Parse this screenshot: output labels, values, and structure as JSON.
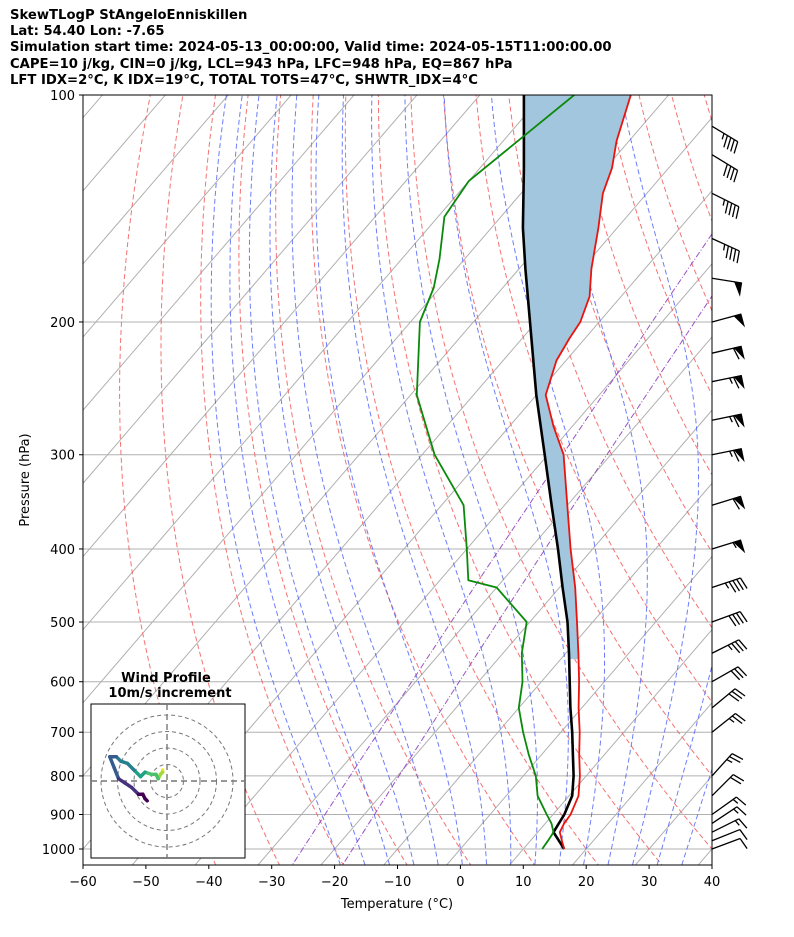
{
  "header": {
    "line1": "SkewTLogP StAngeloEnniskillen",
    "line2": "Lat: 54.40   Lon: -7.65",
    "line3": "Simulation start time: 2024-05-13_00:00:00, Valid time: 2024-05-15T11:00:00.00",
    "line4": "CAPE=10 j/kg, CIN=0 j/kg, LCL=943 hPa, LFC=948 hPa, EQ=867 hPa",
    "line5": "LFT IDX=2°C, K IDX=19°C, TOTAL TOTS=47°C, SHWTR_IDX=4°C"
  },
  "chart_data": {
    "type": "skewt-logp",
    "xlabel": "Temperature (°C)",
    "ylabel": "Pressure (hPa)",
    "xlim": [
      -60,
      40
    ],
    "ylim": [
      1050,
      100
    ],
    "x_ticks": [
      "−60",
      "−50",
      "−40",
      "−30",
      "−20",
      "−10",
      "0",
      "10",
      "20",
      "30",
      "40"
    ],
    "y_ticks": [
      "100",
      "200",
      "300",
      "400",
      "500",
      "600",
      "700",
      "800",
      "900",
      "1000"
    ],
    "colors": {
      "temperature": "#e8140e",
      "dewpoint": "#0a8a0a",
      "parcel": "#000000",
      "cape_fill": "#a3c6df",
      "dry_adiabat": "#f25a5a",
      "moist_adiabat": "#4a5ef5",
      "mixing_ratio": "#8e3fbf",
      "isotherm": "#b0b0b0"
    },
    "temperature_profile": [
      {
        "p": 1000,
        "t": 16.5
      },
      {
        "p": 975,
        "t": 15.0
      },
      {
        "p": 950,
        "t": 13.5
      },
      {
        "p": 925,
        "t": 13.0
      },
      {
        "p": 900,
        "t": 12.8
      },
      {
        "p": 850,
        "t": 11.5
      },
      {
        "p": 800,
        "t": 9.0
      },
      {
        "p": 750,
        "t": 6.0
      },
      {
        "p": 700,
        "t": 3.0
      },
      {
        "p": 650,
        "t": -0.5
      },
      {
        "p": 600,
        "t": -4.0
      },
      {
        "p": 550,
        "t": -8.0
      },
      {
        "p": 500,
        "t": -12.5
      },
      {
        "p": 450,
        "t": -17.5
      },
      {
        "p": 400,
        "t": -23.5
      },
      {
        "p": 350,
        "t": -30.0
      },
      {
        "p": 300,
        "t": -37.5
      },
      {
        "p": 275,
        "t": -43.0
      },
      {
        "p": 250,
        "t": -48.5
      },
      {
        "p": 225,
        "t": -51.5
      },
      {
        "p": 210,
        "t": -52.5
      },
      {
        "p": 200,
        "t": -53.0
      },
      {
        "p": 185,
        "t": -55.0
      },
      {
        "p": 170,
        "t": -58.5
      },
      {
        "p": 150,
        "t": -63.0
      },
      {
        "p": 135,
        "t": -67.0
      },
      {
        "p": 125,
        "t": -69.0
      },
      {
        "p": 115,
        "t": -72.0
      },
      {
        "p": 100,
        "t": -76.0
      }
    ],
    "dewpoint_profile": [
      {
        "p": 1000,
        "t": 13.0
      },
      {
        "p": 975,
        "t": 12.8
      },
      {
        "p": 950,
        "t": 12.5
      },
      {
        "p": 925,
        "t": 11.0
      },
      {
        "p": 900,
        "t": 9.0
      },
      {
        "p": 850,
        "t": 5.0
      },
      {
        "p": 800,
        "t": 2.0
      },
      {
        "p": 750,
        "t": -2.0
      },
      {
        "p": 700,
        "t": -6.0
      },
      {
        "p": 650,
        "t": -10.0
      },
      {
        "p": 600,
        "t": -13.0
      },
      {
        "p": 550,
        "t": -17.0
      },
      {
        "p": 500,
        "t": -20.5
      },
      {
        "p": 450,
        "t": -30.0
      },
      {
        "p": 440,
        "t": -35.5
      },
      {
        "p": 400,
        "t": -40.0
      },
      {
        "p": 350,
        "t": -46.5
      },
      {
        "p": 300,
        "t": -58.0
      },
      {
        "p": 250,
        "t": -69.0
      },
      {
        "p": 200,
        "t": -78.5
      },
      {
        "p": 180,
        "t": -81.0
      },
      {
        "p": 165,
        "t": -84.0
      },
      {
        "p": 145,
        "t": -89.0
      },
      {
        "p": 130,
        "t": -90.0
      },
      {
        "p": 100,
        "t": -85.0
      }
    ],
    "parcel_profile": [
      {
        "p": 1000,
        "t": 16.5
      },
      {
        "p": 950,
        "t": 12.5
      },
      {
        "p": 900,
        "t": 11.8
      },
      {
        "p": 850,
        "t": 10.5
      },
      {
        "p": 800,
        "t": 8.0
      },
      {
        "p": 750,
        "t": 5.0
      },
      {
        "p": 700,
        "t": 1.8
      },
      {
        "p": 650,
        "t": -1.8
      },
      {
        "p": 600,
        "t": -5.5
      },
      {
        "p": 550,
        "t": -9.5
      },
      {
        "p": 500,
        "t": -14.0
      },
      {
        "p": 450,
        "t": -19.5
      },
      {
        "p": 400,
        "t": -25.5
      },
      {
        "p": 350,
        "t": -32.5
      },
      {
        "p": 300,
        "t": -40.5
      },
      {
        "p": 250,
        "t": -50.0
      },
      {
        "p": 200,
        "t": -61.0
      },
      {
        "p": 170,
        "t": -69.0
      },
      {
        "p": 150,
        "t": -75.0
      },
      {
        "p": 125,
        "t": -83.0
      },
      {
        "p": 100,
        "t": -93.0
      }
    ],
    "wind_barbs": [
      {
        "p": 1000,
        "u": 4,
        "v": 1.5
      },
      {
        "p": 975,
        "u": 5,
        "v": 2
      },
      {
        "p": 950,
        "u": 6,
        "v": 3
      },
      {
        "p": 925,
        "u": 6,
        "v": 4
      },
      {
        "p": 900,
        "u": 7,
        "v": 5
      },
      {
        "p": 850,
        "u": 8,
        "v": 8
      },
      {
        "p": 800,
        "u": 9,
        "v": 10
      },
      {
        "p": 700,
        "u": 10,
        "v": 8
      },
      {
        "p": 650,
        "u": 12,
        "v": 10
      },
      {
        "p": 600,
        "u": 14,
        "v": 8
      },
      {
        "p": 550,
        "u": 16,
        "v": 8
      },
      {
        "p": 500,
        "u": 19,
        "v": 7
      },
      {
        "p": 450,
        "u": 21,
        "v": 7
      },
      {
        "p": 400,
        "u": 26,
        "v": 8
      },
      {
        "p": 350,
        "u": 29,
        "v": 9
      },
      {
        "p": 300,
        "u": 34,
        "v": 7
      },
      {
        "p": 270,
        "u": 34,
        "v": 7
      },
      {
        "p": 240,
        "u": 34,
        "v": 7
      },
      {
        "p": 220,
        "u": 30,
        "v": 7
      },
      {
        "p": 200,
        "u": 26,
        "v": 7
      },
      {
        "p": 175,
        "u": 25,
        "v": -4
      },
      {
        "p": 155,
        "u": 22,
        "v": -10
      },
      {
        "p": 135,
        "u": 20,
        "v": -10
      },
      {
        "p": 120,
        "u": 18,
        "v": -11
      },
      {
        "p": 110,
        "u": 20,
        "v": -12
      }
    ],
    "hodograph": {
      "title_line1": "Wind Profile",
      "title_line2": "10m/s increment",
      "ring_step_ms": 10,
      "ring_count": 4,
      "points": [
        {
          "u": -2,
          "v": 5
        },
        {
          "u": -2,
          "v": 4
        },
        {
          "u": -3,
          "v": 3
        },
        {
          "u": -4,
          "v": 1
        },
        {
          "u": -5,
          "v": 3
        },
        {
          "u": -7,
          "v": 3
        },
        {
          "u": -10,
          "v": 4
        },
        {
          "u": -11,
          "v": 3
        },
        {
          "u": -12,
          "v": 2
        },
        {
          "u": -15,
          "v": 5
        },
        {
          "u": -18,
          "v": 8
        },
        {
          "u": -21,
          "v": 9
        },
        {
          "u": -23,
          "v": 11
        },
        {
          "u": -26,
          "v": 11
        },
        {
          "u": -24,
          "v": 6
        },
        {
          "u": -22,
          "v": 1
        },
        {
          "u": -19,
          "v": -1
        },
        {
          "u": -16,
          "v": -3
        },
        {
          "u": -13,
          "v": -6
        },
        {
          "u": -11,
          "v": -6
        },
        {
          "u": -10,
          "v": -8
        },
        {
          "u": -9,
          "v": -9
        }
      ]
    }
  }
}
